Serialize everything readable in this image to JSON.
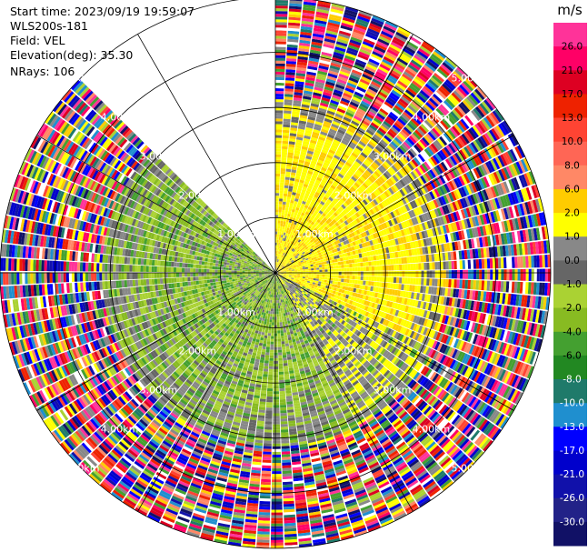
{
  "header": {
    "start_time": "Start time: 2023/09/19 19:59:07",
    "instrument": "WLS200s-181",
    "field": "Field: VEL",
    "elevation": "Elevation(deg): 35.30",
    "nrays": "NRays: 106"
  },
  "chart_data": {
    "type": "heatmap",
    "subtype": "polar-ppi",
    "field": "VEL",
    "units": "m/s",
    "elevation_deg": 35.3,
    "n_rays": 106,
    "range_rings_km": [
      1,
      2,
      3,
      4,
      5
    ],
    "range_labels": [
      "1.00km",
      "2.00km",
      "3.00km",
      "4.00km",
      "5.00km"
    ],
    "max_range_km": 5.0,
    "missing_sector_deg": [
      -45,
      0
    ],
    "colorbar": {
      "title": "m/s",
      "ticks": [
        "26.0",
        "21.0",
        "17.0",
        "13.0",
        "10.0",
        "8.0",
        "6.0",
        "2.0",
        "1.0",
        "0.0",
        "-1.0",
        "-2.0",
        "-4.0",
        "-6.0",
        "-8.0",
        "-10.0",
        "-13.0",
        "-17.0",
        "-21.0",
        "-26.0",
        "-30.0"
      ],
      "colors": [
        "#ff3399",
        "#ff0066",
        "#dd0022",
        "#ee2200",
        "#ff4433",
        "#ff6655",
        "#ff8866",
        "#ffcc00",
        "#ffff00",
        "#888888",
        "#666666",
        "#aad233",
        "#88bb22",
        "#44a030",
        "#228822",
        "#1f7a6a",
        "#1f8fcf",
        "#0000ff",
        "#0000cc",
        "#1111aa",
        "#222288",
        "#111166"
      ]
    },
    "near_range_pattern": "positive (yellow/orange) to the north-east, negative (green) to the west and south, near-zero (gray) mixed; noise beyond about 3 km"
  }
}
